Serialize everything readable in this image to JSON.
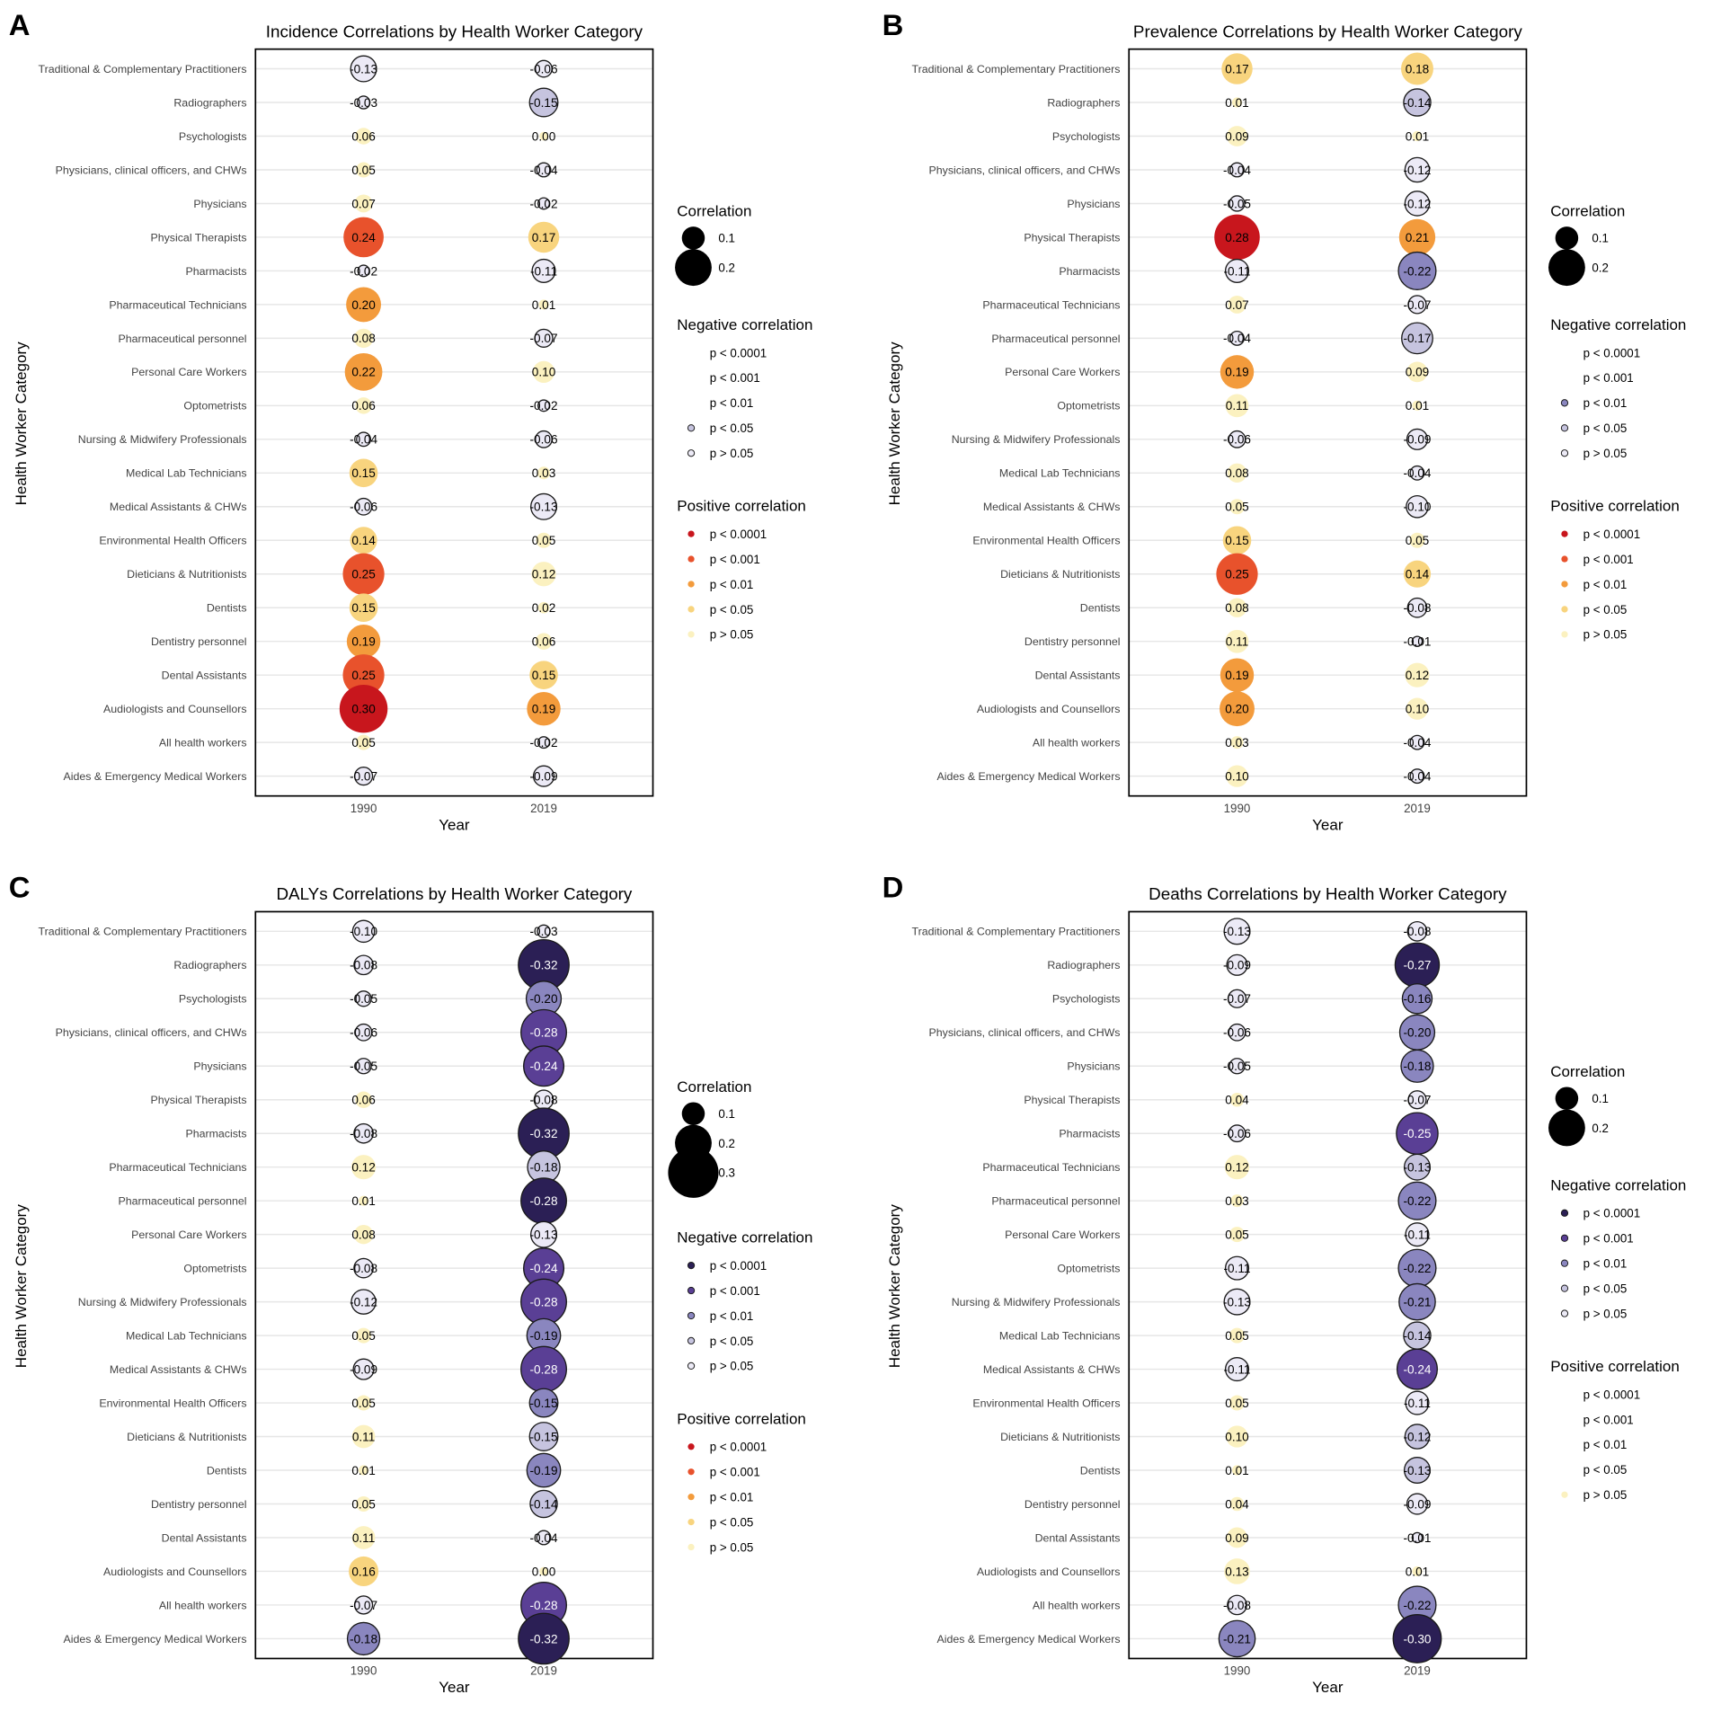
{
  "categories": [
    "Traditional & Complementary Practitioners",
    "Radiographers",
    "Psychologists",
    "Physicians, clinical officers, and CHWs",
    "Physicians",
    "Physical Therapists",
    "Pharmacists",
    "Pharmaceutical Technicians",
    "Pharmaceutical personnel",
    "Personal Care Workers",
    "Optometrists",
    "Nursing & Midwifery Professionals",
    "Medical Lab Technicians",
    "Medical Assistants & CHWs",
    "Environmental Health Officers",
    "Dieticians & Nutritionists",
    "Dentists",
    "Dentistry personnel",
    "Dental Assistants",
    "Audiologists and Counsellors",
    "All health workers",
    "Aides & Emergency Medical Workers"
  ],
  "years": [
    "1990",
    "2019"
  ],
  "xlabel": "Year",
  "ylabel": "Health Worker Category",
  "legend": {
    "size_title": "Correlation",
    "negative_title": "Negative correlation",
    "positive_title": "Positive correlation",
    "p_labels": [
      "p < 0.0001",
      "p < 0.001",
      "p < 0.01",
      "p < 0.05",
      "p > 0.05"
    ]
  },
  "colors": {
    "neg": [
      "#2b1f55",
      "#5a3f95",
      "#8a86bf",
      "#c6c4df",
      "#eceaf6"
    ],
    "pos": [
      "#c8161d",
      "#e8522c",
      "#f39b3c",
      "#f8d47e",
      "#fbf1c0"
    ]
  },
  "chart_data": [
    {
      "panel": "A",
      "type": "scatter",
      "title": "Incidence Correlations by Health Worker Category",
      "legend_sizes": [
        0.1,
        0.2
      ],
      "neg_levels": [
        3,
        4
      ],
      "pos_levels": [
        0,
        1,
        2,
        3,
        4
      ],
      "values_1990": [
        -0.13,
        -0.03,
        0.06,
        0.05,
        0.07,
        0.24,
        -0.02,
        0.2,
        0.08,
        0.22,
        0.06,
        -0.04,
        0.15,
        -0.06,
        0.14,
        0.25,
        0.15,
        0.19,
        0.25,
        0.3,
        0.05,
        -0.07
      ],
      "values_2019": [
        -0.06,
        -0.15,
        0.0,
        -0.04,
        -0.02,
        0.17,
        -0.11,
        0.01,
        -0.07,
        0.1,
        -0.02,
        -0.06,
        0.03,
        -0.13,
        0.05,
        0.12,
        0.02,
        0.06,
        0.15,
        0.19,
        -0.02,
        -0.09
      ],
      "labels_1990": [
        "-0.13",
        "-0.03",
        "0.06",
        "0.05",
        "0.07",
        "0.24",
        "-0.02",
        "0.20",
        "0.08",
        "0.22",
        "0.06",
        "-0.04",
        "0.15",
        "-0.06",
        "0.14",
        "0.25",
        "0.15",
        "0.19",
        "0.25",
        "0.30",
        "0.05",
        "-0.07"
      ],
      "labels_2019": [
        "-0.06",
        "-0.15",
        "0.00",
        "-0.04",
        "-0.02",
        "0.17",
        "-0.11",
        "0.01",
        "-0.07",
        "0.10",
        "-0.02",
        "-0.06",
        "0.03",
        "-0.13",
        "0.05",
        "0.12",
        "0.02",
        "0.06",
        "0.15",
        "0.19",
        "-0.02",
        "-0.09"
      ],
      "sig_1990": [
        4,
        4,
        4,
        4,
        4,
        1,
        4,
        2,
        4,
        2,
        4,
        4,
        3,
        4,
        3,
        1,
        3,
        2,
        1,
        0,
        4,
        4
      ],
      "sig_2019": [
        4,
        3,
        4,
        4,
        4,
        3,
        4,
        4,
        4,
        4,
        4,
        4,
        4,
        4,
        4,
        4,
        4,
        4,
        3,
        2,
        4,
        4
      ]
    },
    {
      "panel": "B",
      "type": "scatter",
      "title": "Prevalence Correlations by Health Worker Category",
      "legend_sizes": [
        0.1,
        0.2
      ],
      "neg_levels": [
        2,
        3,
        4
      ],
      "pos_levels": [
        0,
        1,
        2,
        3,
        4
      ],
      "values_1990": [
        0.17,
        0.01,
        0.09,
        -0.04,
        -0.05,
        0.28,
        -0.11,
        0.07,
        -0.04,
        0.19,
        0.11,
        -0.06,
        0.08,
        0.05,
        0.15,
        0.25,
        0.08,
        0.11,
        0.19,
        0.2,
        0.03,
        0.1
      ],
      "values_2019": [
        0.18,
        -0.14,
        0.01,
        -0.12,
        -0.12,
        0.21,
        -0.22,
        -0.07,
        -0.17,
        0.09,
        0.01,
        -0.09,
        -0.04,
        -0.1,
        0.05,
        0.14,
        -0.08,
        -0.01,
        0.12,
        0.1,
        -0.04,
        -0.04
      ],
      "labels_1990": [
        "0.17",
        "0.01",
        "0.09",
        "-0.04",
        "-0.05",
        "0.28",
        "-0.11",
        "0.07",
        "-0.04",
        "0.19",
        "0.11",
        "-0.06",
        "0.08",
        "0.05",
        "0.15",
        "0.25",
        "0.08",
        "0.11",
        "0.19",
        "0.20",
        "0.03",
        "0.10"
      ],
      "labels_2019": [
        "0.18",
        "-0.14",
        "0.01",
        "-0.12",
        "-0.12",
        "0.21",
        "-0.22",
        "-0.07",
        "-0.17",
        "0.09",
        "0.01",
        "-0.09",
        "-0.04",
        "-0.10",
        "0.05",
        "0.14",
        "-0.08",
        "-0.01",
        "0.12",
        "0.10",
        "-0.04",
        "-0.04"
      ],
      "sig_1990": [
        3,
        4,
        4,
        4,
        4,
        0,
        4,
        4,
        4,
        2,
        4,
        4,
        4,
        4,
        3,
        1,
        4,
        4,
        2,
        2,
        4,
        4
      ],
      "sig_2019": [
        3,
        3,
        4,
        4,
        4,
        2,
        2,
        4,
        3,
        4,
        4,
        4,
        4,
        4,
        4,
        3,
        4,
        4,
        4,
        4,
        4,
        4
      ]
    },
    {
      "panel": "C",
      "type": "scatter",
      "title": "DALYs Correlations by Health Worker Category",
      "legend_sizes": [
        0.1,
        0.2,
        0.3
      ],
      "neg_levels": [
        0,
        1,
        2,
        3,
        4
      ],
      "pos_levels": [
        0,
        1,
        2,
        3,
        4
      ],
      "values_1990": [
        -0.1,
        -0.08,
        -0.05,
        -0.06,
        -0.05,
        0.06,
        -0.08,
        0.12,
        0.01,
        0.08,
        -0.08,
        -0.12,
        0.05,
        -0.09,
        0.05,
        0.11,
        0.01,
        0.05,
        0.11,
        0.16,
        -0.07,
        -0.18
      ],
      "values_2019": [
        -0.03,
        -0.32,
        -0.2,
        -0.28,
        -0.24,
        -0.08,
        -0.32,
        -0.18,
        -0.28,
        -0.13,
        -0.24,
        -0.28,
        -0.19,
        -0.28,
        -0.15,
        -0.15,
        -0.19,
        -0.14,
        -0.04,
        0.0,
        -0.28,
        -0.32
      ],
      "labels_1990": [
        "-0.10",
        "-0.08",
        "-0.05",
        "-0.06",
        "-0.05",
        "0.06",
        "-0.08",
        "0.12",
        "0.01",
        "0.08",
        "-0.08",
        "-0.12",
        "0.05",
        "-0.09",
        "0.05",
        "0.11",
        "0.01",
        "0.05",
        "0.11",
        "0.16",
        "-0.07",
        "-0.18"
      ],
      "labels_2019": [
        "-0.03",
        "-0.32",
        "-0.20",
        "-0.28",
        "-0.24",
        "-0.08",
        "-0.32",
        "-0.18",
        "-0.28",
        "-0.13",
        "-0.24",
        "-0.28",
        "-0.19",
        "-0.28",
        "-0.15",
        "-0.15",
        "-0.19",
        "-0.14",
        "-0.04",
        "0.00",
        "-0.28",
        "-0.32"
      ],
      "sig_1990": [
        4,
        4,
        4,
        4,
        4,
        4,
        4,
        4,
        4,
        4,
        4,
        4,
        4,
        4,
        4,
        4,
        4,
        4,
        4,
        3,
        4,
        2
      ],
      "sig_2019": [
        4,
        0,
        2,
        1,
        1,
        4,
        0,
        3,
        0,
        4,
        1,
        1,
        2,
        1,
        2,
        3,
        2,
        3,
        4,
        4,
        1,
        0
      ]
    },
    {
      "panel": "D",
      "type": "scatter",
      "title": "Deaths Correlations by Health Worker Category",
      "legend_sizes": [
        0.1,
        0.2
      ],
      "neg_levels": [
        0,
        1,
        2,
        3,
        4
      ],
      "pos_levels": [
        4
      ],
      "values_1990": [
        -0.13,
        -0.09,
        -0.07,
        -0.06,
        -0.05,
        0.04,
        -0.06,
        0.12,
        0.03,
        0.05,
        -0.11,
        -0.13,
        0.05,
        -0.11,
        0.05,
        0.1,
        0.01,
        0.04,
        0.09,
        0.13,
        -0.08,
        -0.21
      ],
      "values_2019": [
        -0.08,
        -0.27,
        -0.16,
        -0.2,
        -0.18,
        -0.07,
        -0.25,
        -0.13,
        -0.22,
        -0.11,
        -0.22,
        -0.21,
        -0.14,
        -0.24,
        -0.11,
        -0.12,
        -0.13,
        -0.09,
        -0.01,
        0.01,
        -0.22,
        -0.3
      ],
      "labels_1990": [
        "-0.13",
        "-0.09",
        "-0.07",
        "-0.06",
        "-0.05",
        "0.04",
        "-0.06",
        "0.12",
        "0.03",
        "0.05",
        "-0.11",
        "-0.13",
        "0.05",
        "-0.11",
        "0.05",
        "0.10",
        "0.01",
        "0.04",
        "0.09",
        "0.13",
        "-0.08",
        "-0.21"
      ],
      "labels_2019": [
        "-0.08",
        "-0.27",
        "-0.16",
        "-0.20",
        "-0.18",
        "-0.07",
        "-0.25",
        "-0.13",
        "-0.22",
        "-0.11",
        "-0.22",
        "-0.21",
        "-0.14",
        "-0.24",
        "-0.11",
        "-0.12",
        "-0.13",
        "-0.09",
        "-0.01",
        "0.01",
        "-0.22",
        "-0.30"
      ],
      "sig_1990": [
        4,
        4,
        4,
        4,
        4,
        4,
        4,
        4,
        4,
        4,
        4,
        4,
        4,
        4,
        4,
        4,
        4,
        4,
        4,
        4,
        4,
        2
      ],
      "sig_2019": [
        4,
        0,
        2,
        2,
        2,
        4,
        1,
        3,
        2,
        4,
        2,
        2,
        3,
        1,
        4,
        3,
        3,
        4,
        4,
        4,
        2,
        0
      ]
    }
  ]
}
